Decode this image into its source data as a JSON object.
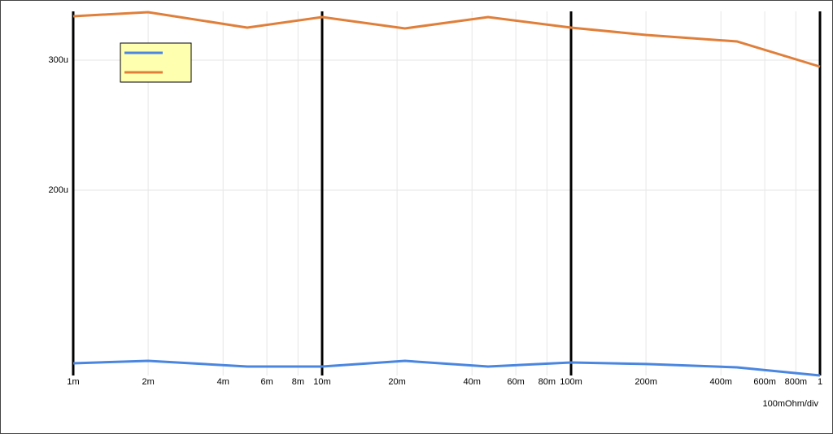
{
  "chart_data": {
    "type": "line",
    "x_label": "100mOhm/div",
    "x": [
      0.001,
      0.002,
      0.005,
      0.01,
      0.0215,
      0.0464,
      0.1,
      0.2,
      0.464,
      1
    ],
    "series": [
      {
        "color": "#4a86e0",
        "values": [
          6.69e-05,
          6.875e-05,
          6.44e-05,
          6.44e-05,
          6.875e-05,
          6.44e-05,
          6.75e-05,
          6.63e-05,
          6.375e-05,
          5.75e-05
        ]
      },
      {
        "color": "#e07f3a",
        "values": [
          0.00033375,
          0.0003369,
          0.000325,
          0.0003331,
          0.0003244,
          0.0003331,
          0.000325,
          0.0003194,
          0.0003144,
          0.000295
        ]
      }
    ],
    "x_log": true,
    "xlim": [
      0.001,
      1
    ],
    "ylim": [
      5.75e-05,
      0.0003375
    ],
    "xticks": [
      {
        "value": 0.001,
        "label": "1m"
      },
      {
        "value": 0.002,
        "label": "2m"
      },
      {
        "value": 0.004,
        "label": "4m"
      },
      {
        "value": 0.006,
        "label": "6m"
      },
      {
        "value": 0.008,
        "label": "8m"
      },
      {
        "value": 0.01,
        "label": "10m"
      },
      {
        "value": 0.02,
        "label": "20m"
      },
      {
        "value": 0.04,
        "label": "40m"
      },
      {
        "value": 0.06,
        "label": "60m"
      },
      {
        "value": 0.08,
        "label": "80m"
      },
      {
        "value": 0.1,
        "label": "100m"
      },
      {
        "value": 0.2,
        "label": "200m"
      },
      {
        "value": 0.4,
        "label": "400m"
      },
      {
        "value": 0.6,
        "label": "600m"
      },
      {
        "value": 0.8,
        "label": "800m"
      },
      1
    ],
    "yticks": [
      {
        "value": 0.0002,
        "label": "200u"
      },
      {
        "value": 0.0003,
        "label": "300u"
      }
    ],
    "grid": true,
    "legend": "upper left",
    "legend_color": "#ffffb0"
  }
}
